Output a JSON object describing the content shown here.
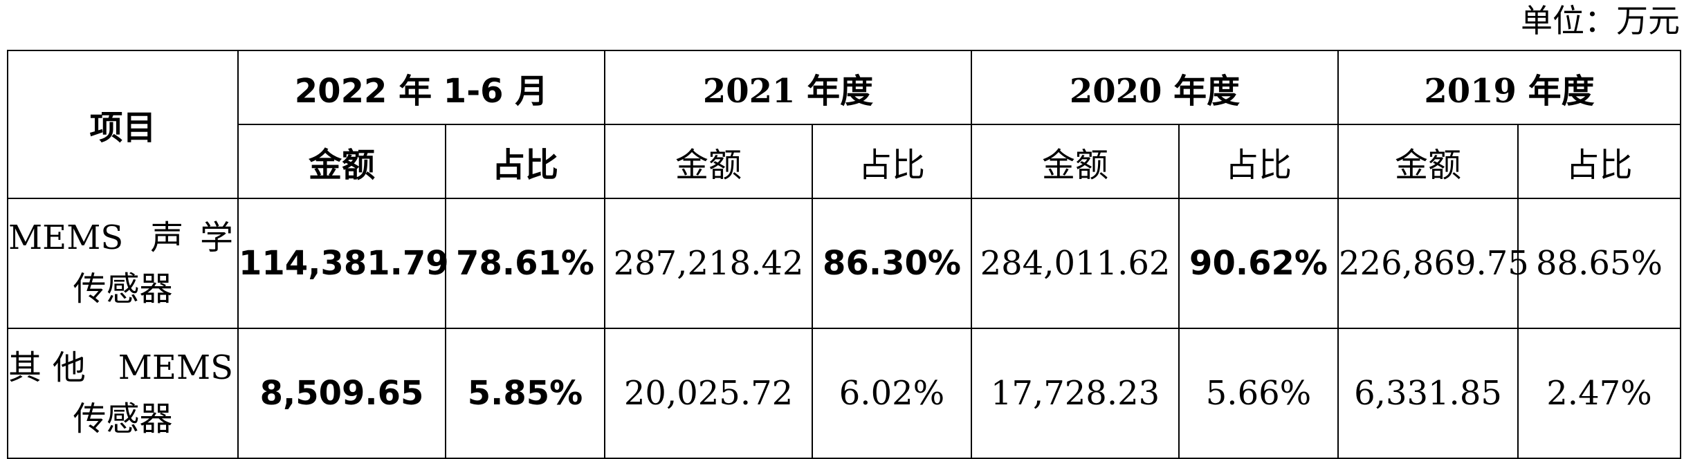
{
  "unit_label": "单位：万元",
  "header": {
    "item": "项目",
    "periods": [
      "2022 年 1-6 月",
      "2021 年度",
      "2020 年度",
      "2019 年度"
    ],
    "amount": "金额",
    "ratio": "占比"
  },
  "rows": [
    {
      "item_line1": "MEMS 声学",
      "item_line2": "传感器",
      "values": [
        "114,381.79",
        "78.61%",
        "287,218.42",
        "86.30%",
        "284,011.62",
        "90.62%",
        "226,869.75",
        "88.65%"
      ]
    },
    {
      "item_line1": "其他 MEMS",
      "item_line2": "传感器",
      "values": [
        "8,509.65",
        "5.85%",
        "20,025.72",
        "6.02%",
        "17,728.23",
        "5.66%",
        "6,331.85",
        "2.47%"
      ]
    }
  ]
}
